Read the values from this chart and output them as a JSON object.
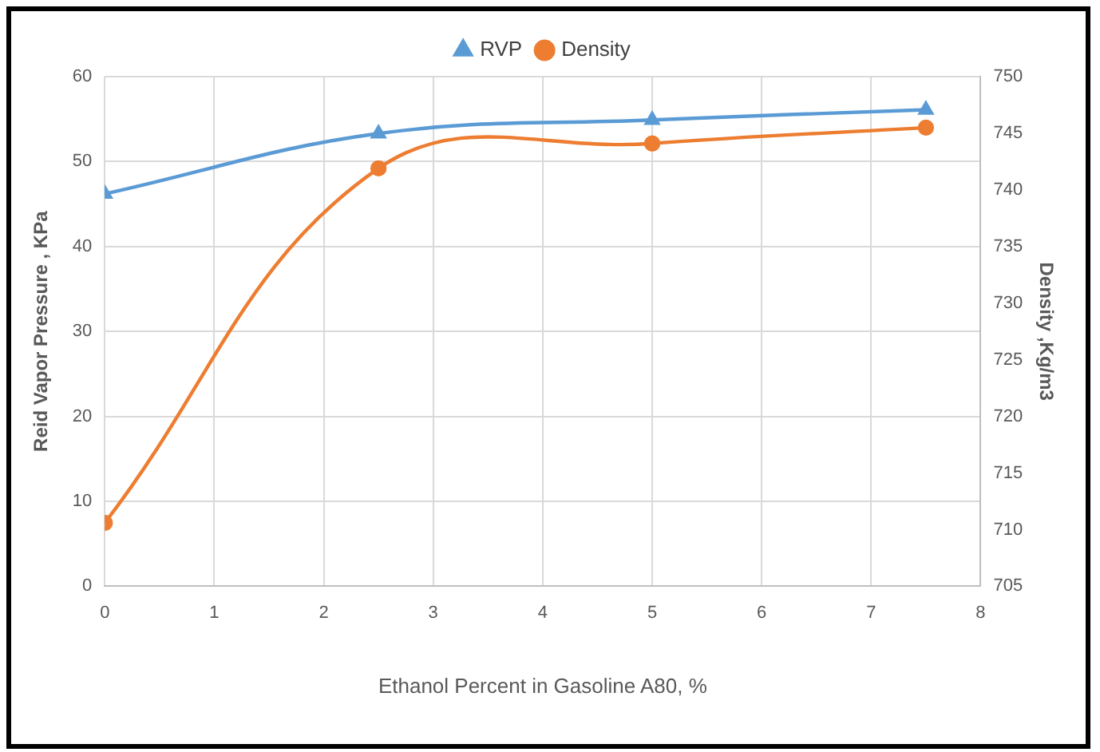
{
  "chart_data": {
    "type": "line",
    "x": [
      0,
      2.5,
      5,
      7.5
    ],
    "series": [
      {
        "name": "RVP",
        "color": "#5b9bd5",
        "values": [
          46.2,
          53.3,
          54.9,
          56.1
        ],
        "marker": "triangle"
      },
      {
        "name": "Density",
        "color": "#ed7d31",
        "values": [
          710.6,
          741.9,
          744.1,
          745.5
        ],
        "marker": "circle",
        "axis": "y2"
      }
    ],
    "xlabel": "Ethanol Percent in Gasoline A80, %",
    "ylabel": "Reid Vapor Pressure , KPa",
    "y2label": "Density ,Kg/m3",
    "xlim": [
      0,
      8
    ],
    "xticks": [
      0,
      1,
      2,
      3,
      4,
      5,
      6,
      7,
      8
    ],
    "ylim": [
      0,
      60
    ],
    "yticks": [
      0,
      10,
      20,
      30,
      40,
      50,
      60
    ],
    "y2lim": [
      705,
      750
    ],
    "y2ticks": [
      705,
      710,
      715,
      720,
      725,
      730,
      735,
      740,
      745,
      750
    ],
    "grid": true,
    "legend": "top"
  }
}
